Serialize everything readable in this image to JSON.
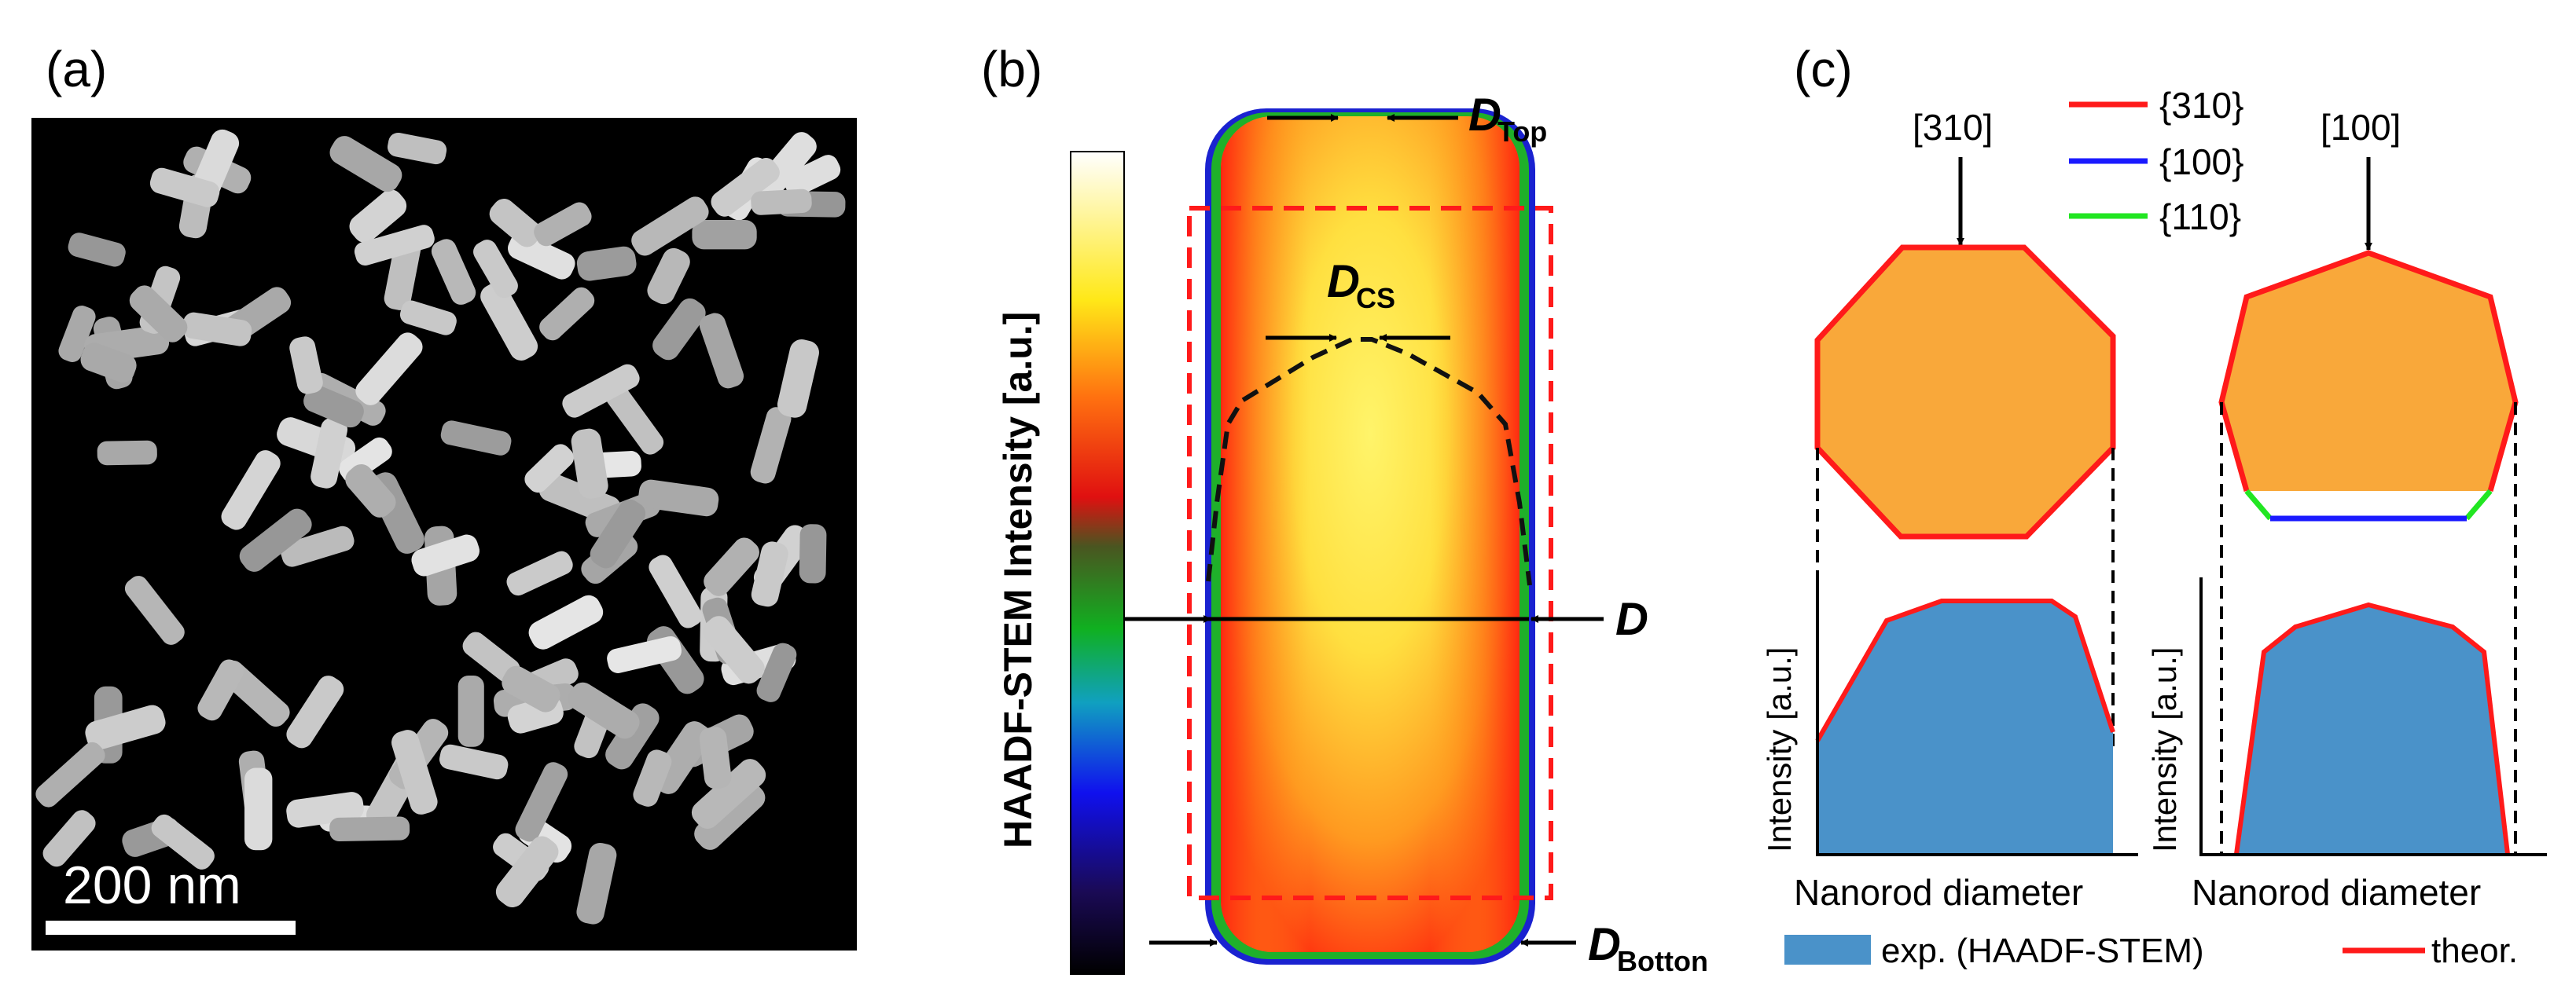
{
  "panels": {
    "a": {
      "label": "(a)",
      "scalebar_text": "200 nm"
    },
    "b": {
      "label": "(b)",
      "colorbar_title": "HAADF-STEM Intensity [a.u.]",
      "dims": {
        "top": {
          "main": "D",
          "sub": "Top"
        },
        "cs": {
          "main": "D",
          "sub": "CS"
        },
        "mid": {
          "main": "D",
          "sub": ""
        },
        "bottom": {
          "main": "D",
          "sub": "Botton"
        }
      }
    },
    "c": {
      "label": "(c)",
      "direction_left": "[310]",
      "direction_right": "[100]",
      "facet_legend": [
        {
          "name": "{310}",
          "color": "#ff1a1a"
        },
        {
          "name": "{100}",
          "color": "#1a1aff"
        },
        {
          "name": "{110}",
          "color": "#22e622"
        }
      ],
      "ylabel": "Intensity [a.u.]",
      "xlabel": "Nanorod diameter",
      "legend_exp": "exp. (HAADF-STEM)",
      "legend_theor": "theor.",
      "colors": {
        "octagon_fill": "#f9a83a",
        "profile_fill": "#4a92c9",
        "theor_line": "#ff1a1a"
      }
    }
  }
}
